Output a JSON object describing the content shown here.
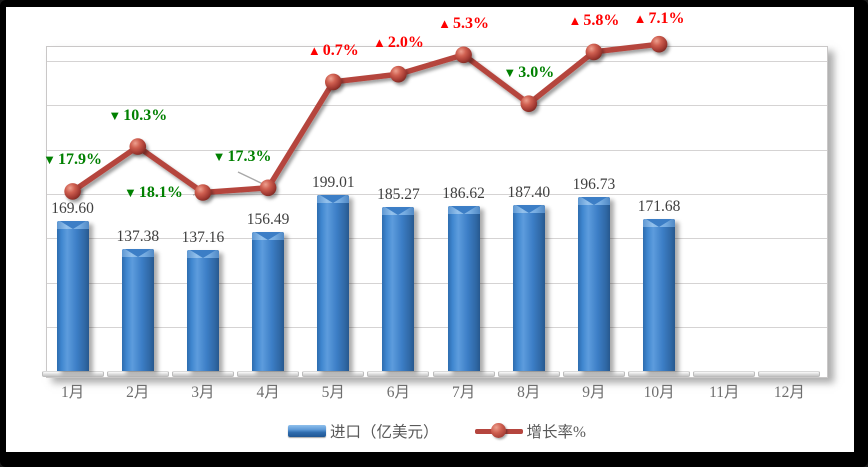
{
  "chart_data": {
    "type": "bar-line-combo",
    "categories": [
      "1月",
      "2月",
      "3月",
      "4月",
      "5月",
      "6月",
      "7月",
      "8月",
      "9月",
      "10月",
      "11月",
      "12月"
    ],
    "series": [
      {
        "name": "进口（亿美元）",
        "type": "bar",
        "values": [
          169.6,
          137.38,
          137.16,
          156.49,
          199.01,
          185.27,
          186.62,
          187.4,
          196.73,
          171.68,
          null,
          null
        ],
        "data_labels": [
          "169.60",
          "137.38",
          "137.16",
          "156.49",
          "199.01",
          "185.27",
          "186.62",
          "187.40",
          "196.73",
          "171.68",
          null,
          null
        ],
        "color": "#3c7ec6"
      },
      {
        "name": "增长率%",
        "type": "line",
        "values": [
          -17.9,
          -10.3,
          -18.1,
          -17.3,
          0.7,
          2.0,
          5.3,
          -3.0,
          5.8,
          7.1,
          null,
          null
        ],
        "data_labels": [
          "▼17.9%",
          "▼10.3%",
          "▼18.1%",
          "▼17.3%",
          "▲0.7%",
          "▲2.0%",
          "▲5.3%",
          "▼3.0%",
          "▲5.8%",
          "▲7.1%",
          null,
          null
        ],
        "color": "#b5453e"
      }
    ],
    "label_colors": {
      "up": "#fe0000",
      "down": "#008000"
    },
    "primary_axis": {
      "min": 0,
      "gridline_unit": 50,
      "tick_labels_visible": false
    },
    "secondary_axis": {
      "tick_labels_visible": false
    },
    "legend": {
      "position": "bottom",
      "entries": [
        "进口（亿美元）",
        "增长率%"
      ]
    },
    "grid": true,
    "title": ""
  }
}
